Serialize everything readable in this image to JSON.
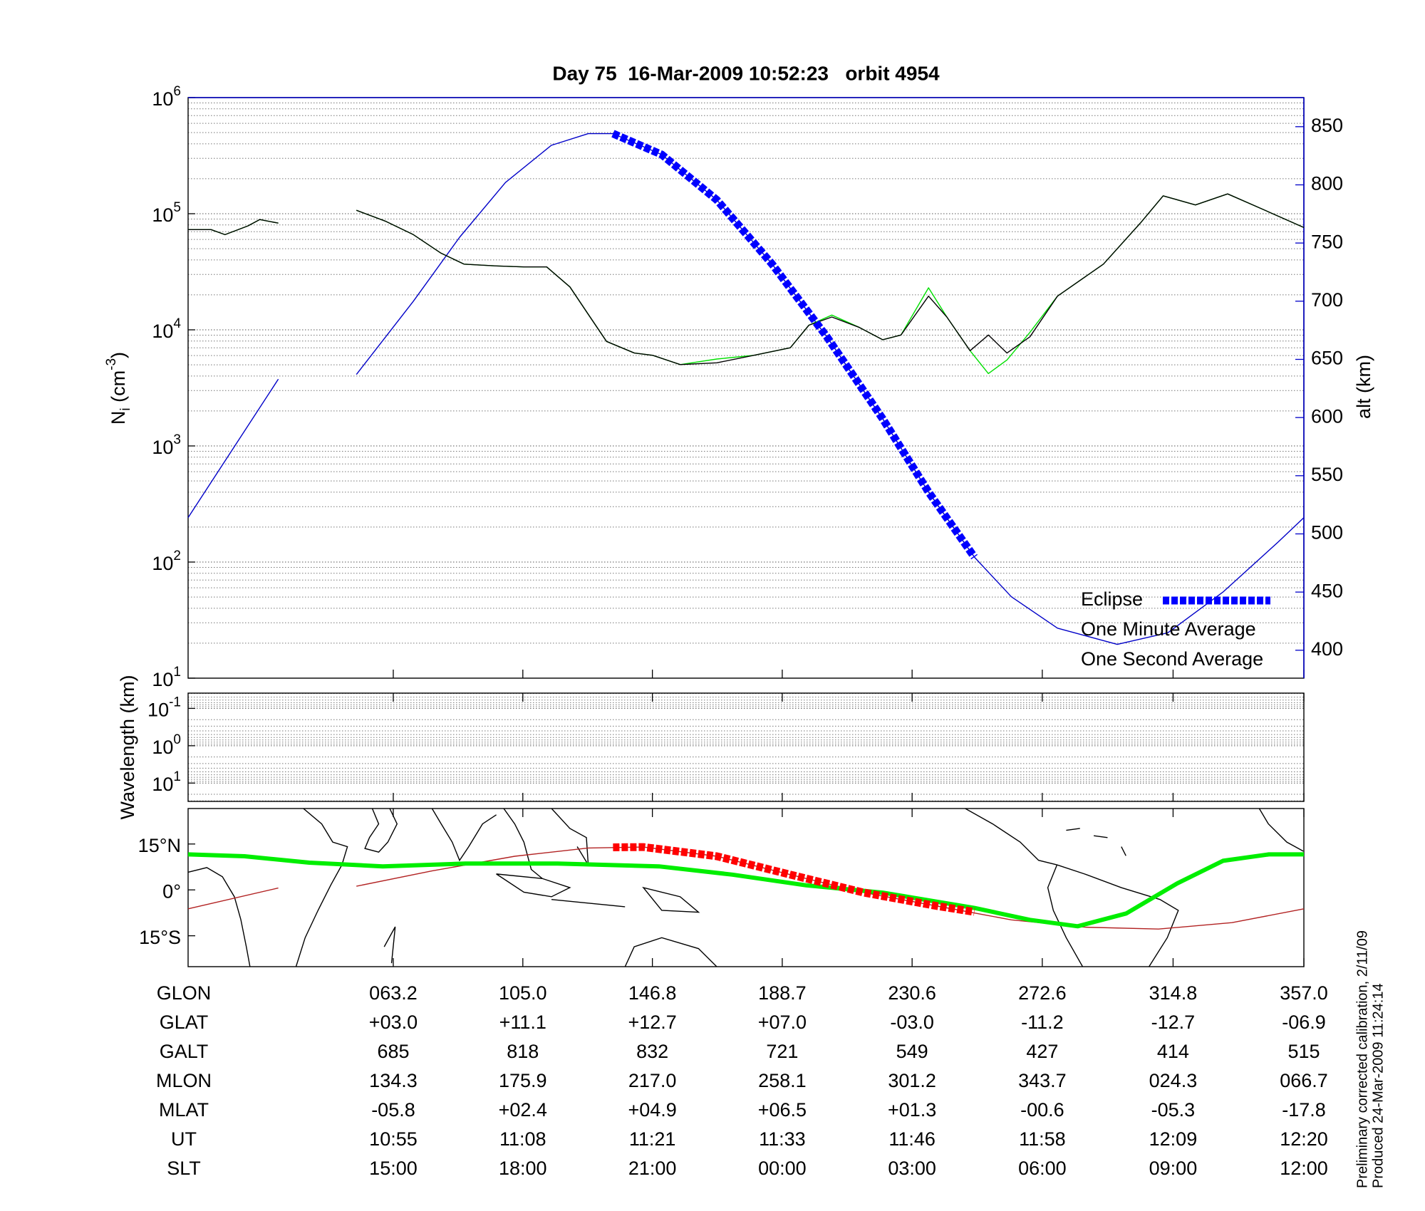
{
  "chart_data": [
    {
      "type": "line",
      "title": "Day 75  16-Mar-2009 10:52:23   orbit 4954",
      "ylabel": {
        "base": "N",
        "sub": "i",
        "unit": " (cm",
        "sup": "-3",
        "close": ")"
      },
      "y2label": "alt (km)",
      "xlabel": "GLON",
      "xlim": [
        -3,
        357
      ],
      "xticks": [
        {
          "value": 63.2,
          "label": "063.2"
        },
        {
          "value": 105.0,
          "label": "105.0"
        },
        {
          "value": 146.8,
          "label": "146.8"
        },
        {
          "value": 188.7,
          "label": "188.7"
        },
        {
          "value": 230.6,
          "label": "230.6"
        },
        {
          "value": 272.6,
          "label": "272.6"
        },
        {
          "value": 314.8,
          "label": "314.8"
        },
        {
          "value": 357.0,
          "label": "357.0"
        }
      ],
      "log_y": true,
      "ylim": [
        10,
        1000000
      ],
      "yticks": [
        {
          "value": 10,
          "label": "10",
          "exponent": "1"
        },
        {
          "value": 100,
          "label": "10",
          "exponent": "2"
        },
        {
          "value": 1000,
          "label": "10",
          "exponent": "3"
        },
        {
          "value": 10000,
          "label": "10",
          "exponent": "4"
        },
        {
          "value": 100000,
          "label": "10",
          "exponent": "5"
        },
        {
          "value": 1000000,
          "label": "10",
          "exponent": "6"
        }
      ],
      "y2lim": [
        376,
        875
      ],
      "y2ticks": [
        400,
        450,
        500,
        550,
        600,
        650,
        700,
        750,
        800,
        850
      ],
      "y2color": "#0000c8",
      "grid": true,
      "minor_grid": true,
      "legend": "lower right",
      "series": [
        {
          "name": "Eclipse",
          "color": "#0000ff",
          "axis": "y2",
          "style": "dashed",
          "x": [
            134.1,
            149.8,
            167.6,
            185.4,
            203.2,
            221.1,
            235.9,
            250.7
          ],
          "values": [
            844,
            826,
            787,
            732,
            669,
            599,
            536,
            480
          ]
        },
        {
          "name": "One Minute Average",
          "color": "#000000",
          "x": [
            -3,
            4.4,
            8.9,
            16.3,
            20.1,
            26.1,
            38,
            51.3,
            60.8,
            69.7,
            78.6,
            86.0,
            96.4,
            105.3,
            112.7,
            120.2,
            126.1,
            132.0,
            141.0,
            146.9,
            155.8,
            167.6,
            179.5,
            191.3,
            197.3,
            204.7,
            213.6,
            221.1,
            227.0,
            235.9,
            241.8,
            249.3,
            255.2,
            261.2,
            268.6,
            277.5,
            292.3,
            304.2,
            311.6,
            322.0,
            332.4,
            342.8,
            357
          ],
          "values": [
            73000,
            73000,
            66000,
            78500,
            89000,
            83000,
            null,
            107000,
            86000,
            66000,
            45700,
            36800,
            35500,
            34800,
            34800,
            23400,
            13600,
            7940,
            6310,
            6030,
            5020,
            5200,
            6030,
            7000,
            10960,
            12900,
            10470,
            8220,
            9020,
            19500,
            12900,
            6610,
            9020,
            6310,
            8710,
            19500,
            36800,
            82800,
            142600,
            119000,
            148000,
            112000,
            76000
          ]
        },
        {
          "name": "One Second Average",
          "color": "#00e000",
          "x": [
            -3,
            4.4,
            8.9,
            16.3,
            20.1,
            26.1,
            38,
            51.3,
            60.8,
            69.7,
            78.6,
            86.0,
            96.4,
            105.3,
            112.7,
            120.2,
            126.1,
            132.0,
            141.0,
            146.9,
            155.8,
            167.6,
            179.5,
            191.3,
            197.3,
            204.7,
            213.6,
            221.1,
            227.0,
            235.9,
            241.8,
            249.3,
            255.2,
            261.2,
            268.6,
            277.5,
            292.3,
            304.2,
            311.6,
            322.0,
            332.4,
            342.8,
            357
          ],
          "values": [
            73000,
            73000,
            66000,
            78500,
            89000,
            83000,
            null,
            107000,
            86000,
            66000,
            45700,
            36800,
            35500,
            34800,
            34800,
            23400,
            13600,
            7940,
            6310,
            6030,
            5020,
            5600,
            6030,
            7000,
            10960,
            13400,
            10470,
            8220,
            9020,
            23000,
            12900,
            6610,
            4200,
            5500,
            9500,
            19500,
            36800,
            82800,
            142600,
            119000,
            148000,
            112000,
            76000
          ]
        },
        {
          "color": "#0000c8",
          "axis": "y2",
          "x": [
            -3,
            26.1,
            38,
            51.3,
            69.7,
            84.6,
            99.4,
            114.2,
            126.1,
            134.1,
            149.8,
            167.6,
            185.4,
            203.2,
            221.1,
            235.9,
            250.7,
            262.6,
            277.5,
            296.8,
            313.1,
            330.9,
            348.7,
            357
          ],
          "values": [
            514,
            633,
            null,
            637,
            700,
            755,
            802,
            834,
            844,
            844,
            826,
            787,
            732,
            669,
            599,
            536,
            480,
            446,
            419,
            405,
            415,
            450,
            493,
            514
          ]
        }
      ]
    },
    {
      "type": "spectrogram",
      "ylabel": "Wavelength (km)",
      "log_y": true,
      "ylim": [
        31,
        0.039
      ],
      "yticks": [
        {
          "value": 0.1,
          "label": "10",
          "exponent": "-1"
        },
        {
          "value": 1,
          "label": "10",
          "exponent": "0"
        },
        {
          "value": 10,
          "label": "10",
          "exponent": "1"
        }
      ],
      "grid": true,
      "minor_grid": true
    },
    {
      "type": "map_track",
      "ylim": [
        -25.1,
        26.6
      ],
      "yticks": [
        {
          "value": 15,
          "label": "15°N"
        },
        {
          "value": 0,
          "label": "0°"
        },
        {
          "value": -15,
          "label": "15°S"
        }
      ],
      "series": [
        {
          "color": "#b22222",
          "x": [
            -3,
            26.1,
            38,
            51.3,
            75.7,
            102.4,
            126.1,
            143.9,
            167.6,
            191.3,
            215.1,
            238.8,
            262.6,
            286.4,
            310.1,
            333.8,
            357
          ],
          "values": [
            -6.2,
            0.6,
            null,
            1.2,
            6.2,
            11.0,
            13.7,
            14.0,
            11.0,
            5.0,
            -0.9,
            -5.3,
            -9.8,
            -12.2,
            -12.8,
            -10.7,
            -6.2
          ]
        },
        {
          "color": "#00ee00",
          "style": "thick",
          "x": [
            -3,
            15.2,
            36.1,
            59.8,
            86.5,
            116.2,
            148.9,
            172.6,
            196.4,
            221.1,
            250.7,
            268.6,
            284.0,
            299.7,
            316.1,
            330.9,
            345.7,
            357
          ],
          "values": [
            11.6,
            11.0,
            8.9,
            7.7,
            8.6,
            8.6,
            7.7,
            5.0,
            1.5,
            -0.9,
            -5.9,
            -9.8,
            -11.9,
            -7.7,
            2.1,
            9.5,
            11.6,
            11.6
          ]
        },
        {
          "color": "#ff0000",
          "style": "dashed",
          "x": [
            134.1,
            143.9,
            167.6,
            191.3,
            215.1,
            238.8,
            250.7
          ],
          "values": [
            13.9,
            14.0,
            11.0,
            5.0,
            -0.9,
            -5.3,
            -7.2
          ]
        }
      ]
    }
  ],
  "orbit_table": {
    "rows": [
      {
        "name": "GLAT",
        "values": [
          "+03.0",
          "+11.1",
          "+12.7",
          "+07.0",
          "-03.0",
          "-11.2",
          "-12.7",
          "-06.9"
        ]
      },
      {
        "name": "GALT",
        "values": [
          685,
          818,
          832,
          721,
          549,
          427,
          414,
          515
        ]
      },
      {
        "name": "MLON",
        "values": [
          "134.3",
          "175.9",
          "217.0",
          "258.1",
          "301.2",
          "343.7",
          "024.3",
          "066.7"
        ]
      },
      {
        "name": "MLAT",
        "values": [
          "-05.8",
          "+02.4",
          "+04.9",
          "+06.5",
          "+01.3",
          "-00.6",
          "-05.3",
          "-17.8"
        ]
      },
      {
        "name": "UT",
        "values": [
          "10:55",
          "11:08",
          "11:21",
          "11:33",
          "11:46",
          "11:58",
          "12:09",
          "12:20"
        ]
      },
      {
        "name": "SLT",
        "values": [
          "15:00",
          "18:00",
          "21:00",
          "00:00",
          "03:00",
          "06:00",
          "09:00",
          "12:00"
        ]
      }
    ]
  },
  "footnotes": [
    "Preliminary corrected calibration, 2/11/09",
    "Produced 24-Mar-2009 11:24:14"
  ]
}
